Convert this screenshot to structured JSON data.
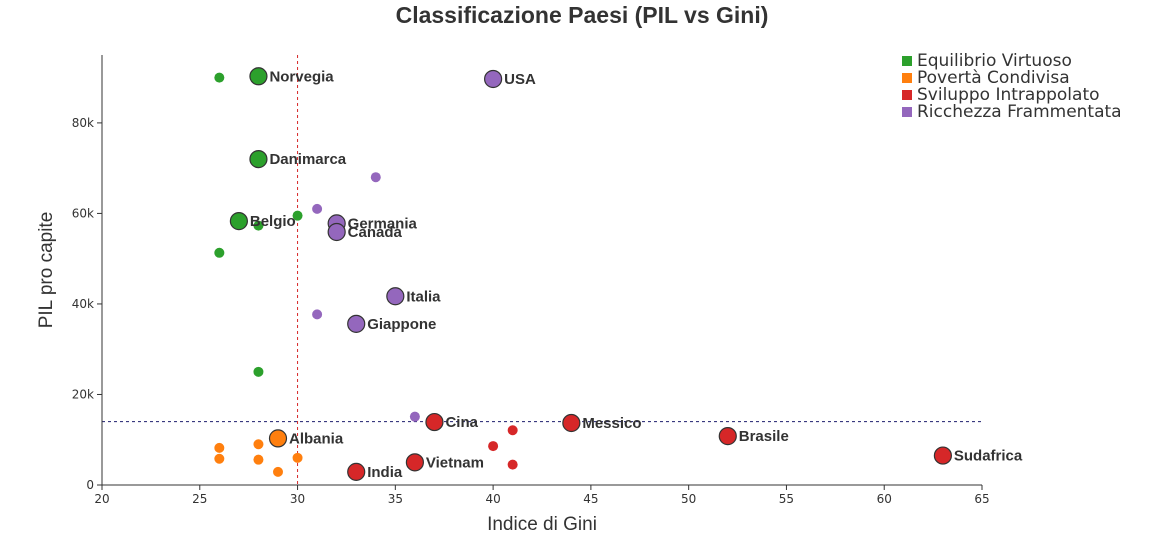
{
  "chart_data": {
    "type": "scatter",
    "title": "Classificazione Paesi (PIL vs Gini)",
    "xlabel": "Indice di Gini",
    "ylabel": "PIL pro capite",
    "xlim": [
      20,
      65
    ],
    "ylim": [
      0,
      95000
    ],
    "x_ticks": [
      20,
      25,
      30,
      35,
      40,
      45,
      50,
      55,
      60,
      65
    ],
    "y_ticks": [
      0,
      20000,
      40000,
      60000,
      80000
    ],
    "y_tick_labels": [
      "0",
      "20k",
      "40k",
      "60k",
      "80k"
    ],
    "x_threshold": 30,
    "y_threshold": 14000,
    "grid": false,
    "legend_position": "top-right",
    "series": [
      {
        "name": "Equilibrio Virtuoso",
        "color": "#2ca02c",
        "points": [
          {
            "x": 26,
            "y": 90000
          },
          {
            "x": 28,
            "y": 90300,
            "label": "Norvegia"
          },
          {
            "x": 28,
            "y": 72000,
            "label": "Danimarca"
          },
          {
            "x": 27,
            "y": 58300,
            "label": "Belgio"
          },
          {
            "x": 28,
            "y": 57300
          },
          {
            "x": 30,
            "y": 59500
          },
          {
            "x": 26,
            "y": 51300
          },
          {
            "x": 28,
            "y": 25000
          }
        ]
      },
      {
        "name": "Povertà Condivisa",
        "color": "#ff7f0e",
        "points": [
          {
            "x": 29,
            "y": 10300,
            "label": "Albania"
          },
          {
            "x": 26,
            "y": 8200
          },
          {
            "x": 28,
            "y": 9000
          },
          {
            "x": 26,
            "y": 5800
          },
          {
            "x": 28,
            "y": 5600
          },
          {
            "x": 30,
            "y": 6000
          },
          {
            "x": 29,
            "y": 2900
          }
        ]
      },
      {
        "name": "Sviluppo Intrappolato",
        "color": "#d62728",
        "points": [
          {
            "x": 37,
            "y": 13900,
            "label": "Cina"
          },
          {
            "x": 44,
            "y": 13700,
            "label": "Messico"
          },
          {
            "x": 52,
            "y": 10800,
            "label": "Brasile"
          },
          {
            "x": 63,
            "y": 6500,
            "label": "Sudafrica"
          },
          {
            "x": 36,
            "y": 5000,
            "label": "Vietnam"
          },
          {
            "x": 33,
            "y": 2900,
            "label": "India"
          },
          {
            "x": 41,
            "y": 12100
          },
          {
            "x": 40,
            "y": 8600
          },
          {
            "x": 41,
            "y": 4500
          }
        ]
      },
      {
        "name": "Ricchezza Frammentata",
        "color": "#9467bd",
        "points": [
          {
            "x": 40,
            "y": 89700,
            "label": "USA"
          },
          {
            "x": 34,
            "y": 68000
          },
          {
            "x": 31,
            "y": 61000
          },
          {
            "x": 32,
            "y": 57800,
            "label": "Germania"
          },
          {
            "x": 32,
            "y": 55900,
            "label": "Canada"
          },
          {
            "x": 35,
            "y": 41700,
            "label": "Italia"
          },
          {
            "x": 31,
            "y": 37700
          },
          {
            "x": 33,
            "y": 35600,
            "label": "Giappone"
          },
          {
            "x": 36,
            "y": 15100
          }
        ]
      }
    ]
  }
}
